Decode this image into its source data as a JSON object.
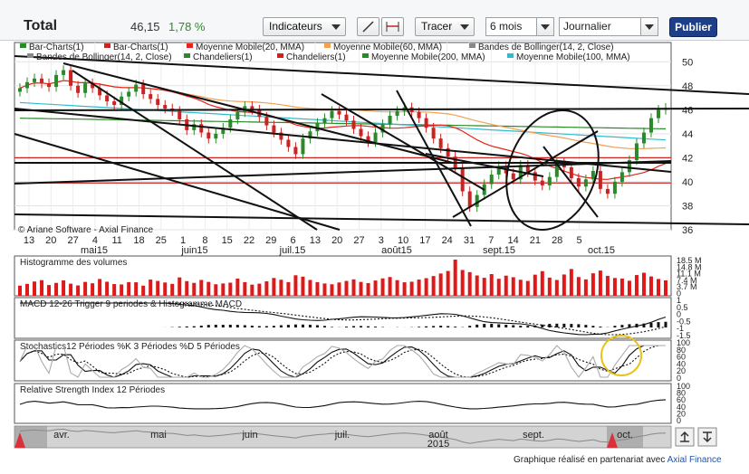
{
  "header": {
    "title": "Total",
    "price": "46,15",
    "change": "1,78 %",
    "indicators_label": "Indicateurs",
    "draw_label": "Tracer",
    "period_value": "6 mois",
    "interval_value": "Journalier",
    "publish_label": "Publier"
  },
  "legend": [
    {
      "label": "Bar-Charts(1)",
      "color": "#2a8a2a"
    },
    {
      "label": "Bar-Charts(1)",
      "color": "#cc2222"
    },
    {
      "label": "Moyenne Mobile(20, MMA)",
      "color": "#e8231a"
    },
    {
      "label": "Moyenne Mobile(60, MMA)",
      "color": "#f2a052"
    },
    {
      "label": "Bandes de Bollinger(14, 2, Close)",
      "color": "#888888"
    },
    {
      "label": "Bandes de Bollinger(14, 2, Close)",
      "color": "#888888"
    },
    {
      "label": "Chandeliers(1)",
      "color": "#2a8a2a"
    },
    {
      "label": "Chandeliers(1)",
      "color": "#cc2222"
    },
    {
      "label": "Moyenne Mobile(200, MMA)",
      "color": "#2a8a2a"
    },
    {
      "label": "Moyenne Mobile(100, MMA)",
      "color": "#33bbcc"
    }
  ],
  "watermark": "© Ariane Software - Axial Finance",
  "footer": {
    "text": "Graphique réalisé en partenariat avec",
    "brand": "Axial Finance"
  },
  "navigator": {
    "months": [
      "avr.",
      "mai",
      "juin",
      "juil.",
      "août",
      "sept.",
      "oct."
    ],
    "year": "2015"
  },
  "chart_data": [
    {
      "type": "bar",
      "panel": "price",
      "yticks": [
        "50",
        "48",
        "46",
        "44",
        "42",
        "40",
        "38",
        "36"
      ],
      "ylim": [
        36,
        51
      ],
      "x_day_ticks": [
        "13",
        "20",
        "27",
        "4",
        "11",
        "18",
        "25",
        "1",
        "8",
        "15",
        "22",
        "29",
        "6",
        "13",
        "20",
        "27",
        "3",
        "10",
        "17",
        "24",
        "31",
        "7",
        "14",
        "21",
        "28",
        "5"
      ],
      "x_month_labels": [
        "mai15",
        "juin15",
        "juil.15",
        "août15",
        "sept.15",
        "oct.15"
      ],
      "close": [
        47.8,
        48.3,
        48.6,
        48.2,
        47.9,
        48.9,
        49.3,
        48.0,
        47.4,
        48.2,
        47.8,
        47.2,
        46.7,
        46.4,
        47.1,
        47.5,
        48.1,
        47.3,
        46.9,
        46.4,
        46.1,
        45.9,
        45.2,
        44.3,
        44.8,
        44.1,
        43.6,
        44.0,
        44.5,
        45.2,
        45.8,
        46.3,
        46.0,
        45.4,
        44.7,
        44.1,
        43.5,
        42.9,
        42.3,
        43.6,
        44.2,
        44.9,
        45.3,
        45.9,
        45.6,
        45.1,
        44.4,
        43.8,
        43.3,
        44.1,
        44.8,
        45.5,
        45.9,
        46.2,
        45.8,
        45.3,
        44.5,
        43.6,
        42.8,
        42.1,
        41.1,
        39.2,
        37.9,
        38.9,
        39.8,
        40.6,
        41.3,
        40.7,
        40.2,
        41.4,
        40.8,
        40.1,
        39.7,
        40.4,
        41.6,
        41.2,
        40.3,
        39.6,
        40.2,
        40.9,
        39.4,
        39.0,
        40.0,
        40.8,
        41.8,
        43.2,
        44.1,
        45.3,
        46.0,
        46.15
      ],
      "volume": [
        5.2,
        6.1,
        7.3,
        8.0,
        5.5,
        6.6,
        7.9,
        6.2,
        5.3,
        7.1,
        6.4,
        8.6,
        7.2,
        6.0,
        5.8,
        7.0,
        6.9,
        5.2,
        8.3,
        7.6,
        6.8,
        6.1,
        9.4,
        7.5,
        6.6,
        8.1,
        7.1,
        5.9,
        6.3,
        6.7,
        8.8,
        7.0,
        5.7,
        6.2,
        7.4,
        9.1,
        8.2,
        7.0,
        10.5,
        9.8,
        8.1,
        7.0,
        6.3,
        5.9,
        6.8,
        7.6,
        8.4,
        7.1,
        6.5,
        7.8,
        8.9,
        9.6,
        8.0,
        6.9,
        7.2,
        8.3,
        9.0,
        10.1,
        11.4,
        12.7,
        18.5,
        13.2,
        12.1,
        10.4,
        9.2,
        11.1,
        8.7,
        10.3,
        9.5,
        8.2,
        7.6,
        10.8,
        12.6,
        9.3,
        8.1,
        10.9,
        13.7,
        9.6,
        8.4,
        11.5,
        12.9,
        10.2,
        9.1,
        8.8,
        7.7,
        10.6,
        11.8,
        9.9,
        8.6,
        7.9
      ]
    },
    {
      "type": "bar",
      "panel": "volume",
      "title": "Histogramme des volumes",
      "yticks": [
        "18.5 M",
        "14.8 M",
        "11.1 M",
        "7.4 M",
        "3.7 M",
        "0"
      ]
    },
    {
      "type": "line",
      "panel": "macd",
      "title": "MACD 12-26   Trigger 9 periodes & Histogramme MACD",
      "yticks": [
        "1",
        "0.5",
        "0",
        "-0.5",
        "-1",
        "-1.5"
      ]
    },
    {
      "type": "line",
      "panel": "stochastics",
      "title": "Stochastics12 Périodes   %K 3 Périodes   %D 5 Périodes",
      "yticks": [
        "100",
        "80",
        "60",
        "40",
        "20",
        "0"
      ]
    },
    {
      "type": "line",
      "panel": "rsi",
      "title": "Relative Strength Index 12 Périodes",
      "yticks": [
        "100",
        "80",
        "60",
        "40",
        "20",
        "0"
      ]
    }
  ]
}
